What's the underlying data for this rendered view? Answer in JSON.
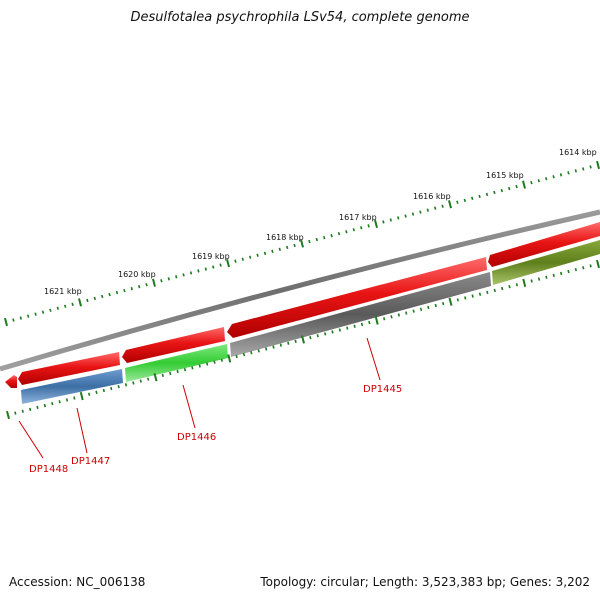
{
  "title": "Desulfotalea psychrophila LSv54, complete genome",
  "footer": {
    "accession": "Accession: NC_006138",
    "summary": "Topology: circular; Length: 3,523,383 bp; Genes: 3,202"
  },
  "kbp_labels": [
    "1614 kbp",
    "1615 kbp",
    "1616 kbp",
    "1617 kbp",
    "1618 kbp",
    "1619 kbp",
    "1620 kbp",
    "1621 kbp"
  ],
  "gene_labels": [
    "DP1445",
    "DP1446",
    "DP1447",
    "DP1448"
  ],
  "colors": {
    "backbone": "#808080",
    "cds_forward": "#e51a1a",
    "gene_green": "#33cc33",
    "gene_blue": "#4a7fb5",
    "gene_gray": "#666666",
    "gene_olive": "#6b8e23",
    "ticks": "#1e7a1e",
    "gene_label": "#cc0000"
  }
}
